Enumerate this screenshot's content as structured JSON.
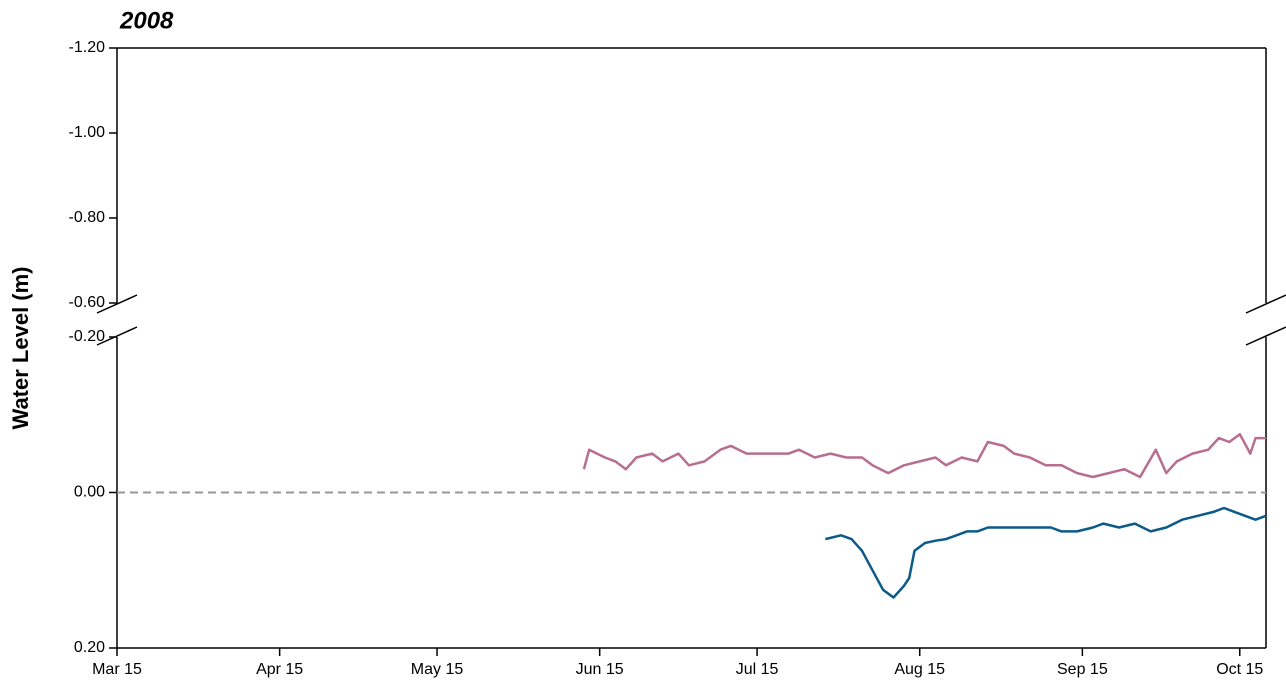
{
  "chart_data": {
    "type": "line",
    "title": "2008",
    "y_label": "Water Level (m)",
    "xlim": [
      "2008-03-15",
      "2008-10-20"
    ],
    "xticks": [
      {
        "value": "2008-03-15",
        "label": "Mar 15"
      },
      {
        "value": "2008-04-15",
        "label": "Apr 15"
      },
      {
        "value": "2008-05-15",
        "label": "May 15"
      },
      {
        "value": "2008-06-15",
        "label": "Jun 15"
      },
      {
        "value": "2008-07-15",
        "label": "Jul 15"
      },
      {
        "value": "2008-08-15",
        "label": "Aug 15"
      },
      {
        "value": "2008-09-15",
        "label": "Sep 15"
      },
      {
        "value": "2008-10-15",
        "label": "Oct 15"
      }
    ],
    "ylim": [
      -1.2,
      0.2
    ],
    "y_break": [
      -0.6,
      -0.2
    ],
    "yticks": [
      {
        "value": -1.2,
        "label": "-1.20"
      },
      {
        "value": -1.0,
        "label": "-1.00"
      },
      {
        "value": -0.8,
        "label": "-0.80"
      },
      {
        "value": -0.6,
        "label": "-0.60"
      },
      {
        "value": -0.2,
        "label": "-0.20"
      },
      {
        "value": 0,
        "label": "0.00"
      },
      {
        "value": 0.2,
        "label": "0.20"
      }
    ],
    "reference_line": 0,
    "series": [
      {
        "color": "#b86e8e",
        "x": [
          "2008-06-12",
          "2008-06-13",
          "2008-06-16",
          "2008-06-18",
          "2008-06-20",
          "2008-06-22",
          "2008-06-25",
          "2008-06-27",
          "2008-06-30",
          "2008-07-02",
          "2008-07-05",
          "2008-07-08",
          "2008-07-10",
          "2008-07-13",
          "2008-07-17",
          "2008-07-21",
          "2008-07-23",
          "2008-07-26",
          "2008-07-29",
          "2008-08-01",
          "2008-08-04",
          "2008-08-06",
          "2008-08-09",
          "2008-08-12",
          "2008-08-15",
          "2008-08-18",
          "2008-08-20",
          "2008-08-23",
          "2008-08-26",
          "2008-08-28",
          "2008-08-31",
          "2008-09-02",
          "2008-09-05",
          "2008-09-08",
          "2008-09-11",
          "2008-09-14",
          "2008-09-17",
          "2008-09-20",
          "2008-09-23",
          "2008-09-26",
          "2008-09-29",
          "2008-10-01",
          "2008-10-03",
          "2008-10-06",
          "2008-10-09",
          "2008-10-11",
          "2008-10-13",
          "2008-10-15",
          "2008-10-17",
          "2008-10-18",
          "2008-10-20"
        ],
        "values": [
          -0.03,
          -0.055,
          -0.045,
          -0.04,
          -0.03,
          -0.045,
          -0.05,
          -0.04,
          -0.05,
          -0.035,
          -0.04,
          -0.055,
          -0.06,
          -0.05,
          -0.05,
          -0.05,
          -0.055,
          -0.045,
          -0.05,
          -0.045,
          -0.045,
          -0.035,
          -0.025,
          -0.035,
          -0.04,
          -0.045,
          -0.035,
          -0.045,
          -0.04,
          -0.065,
          -0.06,
          -0.05,
          -0.045,
          -0.035,
          -0.035,
          -0.025,
          -0.02,
          -0.025,
          -0.03,
          -0.02,
          -0.055,
          -0.025,
          -0.04,
          -0.05,
          -0.055,
          -0.07,
          -0.065,
          -0.075,
          -0.05,
          -0.07,
          -0.07
        ]
      },
      {
        "color": "#0b5a8a",
        "x": [
          "2008-07-28",
          "2008-07-31",
          "2008-08-02",
          "2008-08-04",
          "2008-08-06",
          "2008-08-08",
          "2008-08-10",
          "2008-08-12",
          "2008-08-13",
          "2008-08-14",
          "2008-08-16",
          "2008-08-18",
          "2008-08-20",
          "2008-08-22",
          "2008-08-24",
          "2008-08-26",
          "2008-08-28",
          "2008-08-31",
          "2008-09-03",
          "2008-09-06",
          "2008-09-09",
          "2008-09-11",
          "2008-09-14",
          "2008-09-17",
          "2008-09-19",
          "2008-09-22",
          "2008-09-25",
          "2008-09-28",
          "2008-10-01",
          "2008-10-04",
          "2008-10-07",
          "2008-10-10",
          "2008-10-12",
          "2008-10-14",
          "2008-10-16",
          "2008-10-18",
          "2008-10-20"
        ],
        "values": [
          0.06,
          0.055,
          0.06,
          0.075,
          0.1,
          0.125,
          0.135,
          0.12,
          0.11,
          0.075,
          0.065,
          0.062,
          0.06,
          0.055,
          0.05,
          0.05,
          0.045,
          0.045,
          0.045,
          0.045,
          0.045,
          0.05,
          0.05,
          0.045,
          0.04,
          0.045,
          0.04,
          0.05,
          0.045,
          0.035,
          0.03,
          0.025,
          0.02,
          0.025,
          0.03,
          0.035,
          0.03
        ]
      }
    ]
  }
}
